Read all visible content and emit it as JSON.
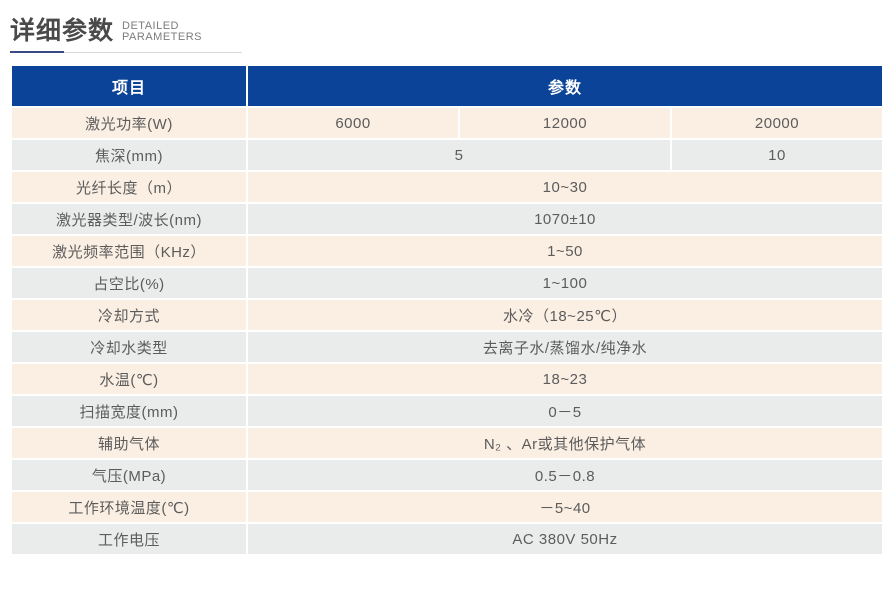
{
  "page_title": {
    "zh": "详细参数",
    "en_line1": "DETAILED",
    "en_line2": "PARAMETERS"
  },
  "table": {
    "headers": {
      "item": "项目",
      "param": "参数"
    },
    "rows": [
      {
        "label": "激光功率(W)",
        "cells": [
          "6000",
          "12000",
          "20000"
        ]
      },
      {
        "label": "焦深(mm)",
        "cells": [
          "5",
          "10"
        ]
      },
      {
        "label": "光纤长度（m）",
        "cells": [
          "10~30"
        ]
      },
      {
        "label": "激光器类型/波长(nm)",
        "cells": [
          "1070±10"
        ]
      },
      {
        "label": "激光频率范围（KHz）",
        "cells": [
          "1~50"
        ]
      },
      {
        "label": "占空比(%)",
        "cells": [
          "1~100"
        ]
      },
      {
        "label": "冷却方式",
        "cells": [
          "水冷（18~25℃）"
        ]
      },
      {
        "label": "冷却水类型",
        "cells": [
          "去离子水/蒸馏水/纯净水"
        ]
      },
      {
        "label": "水温(℃)",
        "cells": [
          "18~23"
        ]
      },
      {
        "label": "扫描宽度(mm)",
        "cells": [
          "0－5"
        ]
      },
      {
        "label": "辅助气体",
        "cells": [
          "N₂ 、Ar或其他保护气体"
        ]
      },
      {
        "label": "气压(MPa)",
        "cells": [
          "0.5－0.8"
        ]
      },
      {
        "label": "工作环境温度(℃)",
        "cells": [
          "－5~40"
        ]
      },
      {
        "label": "工作电压",
        "cells": [
          "AC 380V 50Hz"
        ]
      }
    ]
  },
  "colors": {
    "header_bg": "#0a4397",
    "row_cream": "#fbefe3",
    "row_gray": "#eaeceb",
    "cell_text": "#5c5c5c",
    "header_text": "#ffffff",
    "title_text": "#4a4a4a",
    "accent_underline": "#3b4b86",
    "underline_gray": "#d9d9d9"
  }
}
